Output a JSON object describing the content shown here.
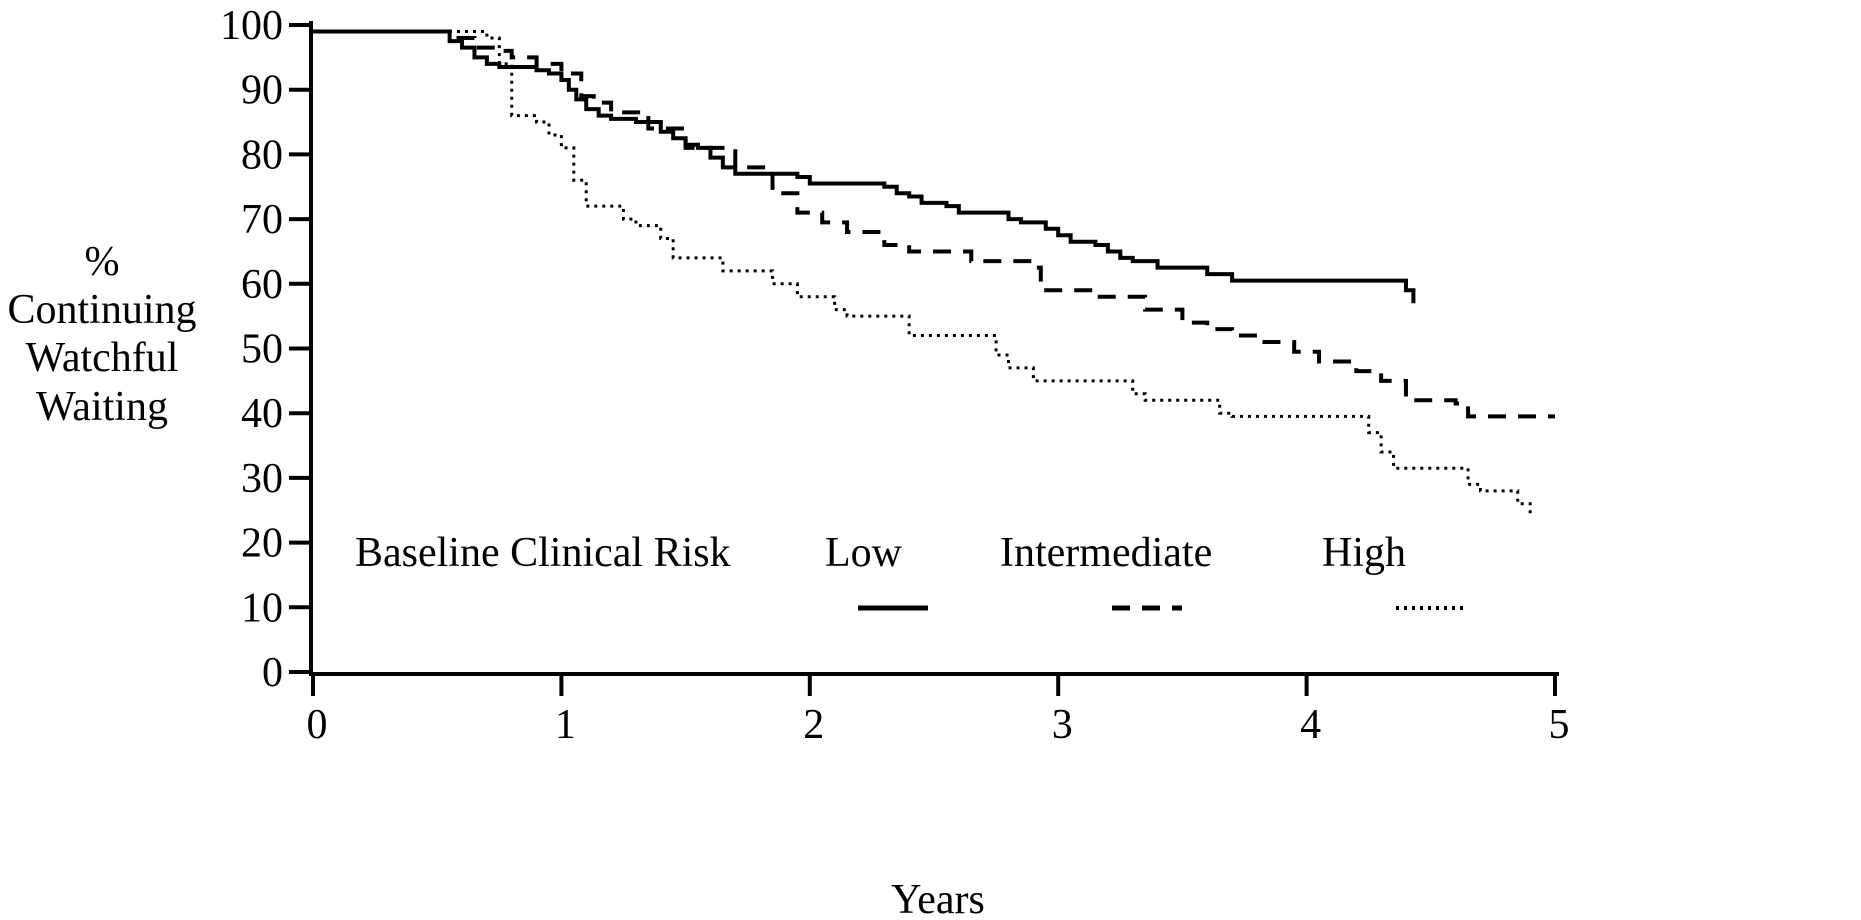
{
  "chart_data": {
    "type": "line",
    "step": true,
    "xlabel": "Years",
    "ylabel_lines": [
      "%",
      "Continuing",
      "Watchful",
      "Waiting"
    ],
    "xlim": [
      0,
      5
    ],
    "ylim": [
      0,
      100
    ],
    "x_ticks": [
      0,
      1,
      2,
      3,
      4,
      5
    ],
    "y_ticks": [
      0,
      10,
      20,
      30,
      40,
      50,
      60,
      70,
      80,
      90,
      100
    ],
    "grid": false,
    "legend": {
      "title": "Baseline Clinical Risk",
      "placement": "bottom-inside"
    },
    "series": [
      {
        "name": "Low",
        "style": "solid",
        "x": [
          0,
          0.5,
          0.55,
          0.6,
          0.65,
          0.7,
          0.75,
          0.85,
          0.9,
          0.95,
          1.0,
          1.03,
          1.06,
          1.1,
          1.15,
          1.2,
          1.3,
          1.4,
          1.45,
          1.5,
          1.55,
          1.6,
          1.65,
          1.7,
          1.75,
          1.95,
          2.0,
          2.1,
          2.3,
          2.35,
          2.4,
          2.45,
          2.55,
          2.6,
          2.75,
          2.8,
          2.85,
          2.9,
          2.95,
          3.0,
          3.05,
          3.1,
          3.15,
          3.2,
          3.25,
          3.3,
          3.4,
          3.55,
          3.6,
          3.7,
          4.36,
          4.4,
          4.43
        ],
        "y": [
          99,
          99,
          97.5,
          96.5,
          95,
          94,
          93.5,
          93.5,
          93,
          92.5,
          91.5,
          90,
          88.5,
          87,
          86,
          85.5,
          85,
          83.5,
          82.5,
          81.5,
          81,
          79.5,
          78,
          77,
          77,
          76.5,
          75.5,
          75.5,
          75,
          74,
          73.5,
          72.5,
          72,
          71,
          71,
          70,
          69.5,
          69.5,
          68.5,
          67.5,
          66.5,
          66.5,
          66,
          65,
          64,
          63.5,
          62.5,
          62.5,
          61.5,
          60.5,
          60.5,
          59,
          57
        ]
      },
      {
        "name": "Intermediate",
        "style": "dashed",
        "x": [
          0,
          0.5,
          0.55,
          0.65,
          0.75,
          0.8,
          0.9,
          1.0,
          1.08,
          1.13,
          1.2,
          1.35,
          1.5,
          1.7,
          1.85,
          1.95,
          2.05,
          2.15,
          2.3,
          2.4,
          2.65,
          2.9,
          2.93,
          3.15,
          3.35,
          3.5,
          3.6,
          3.7,
          3.8,
          3.95,
          4.05,
          4.2,
          4.3,
          4.4,
          4.6,
          4.65,
          5.0
        ],
        "y": [
          99,
          99,
          98,
          96.5,
          96,
          95,
          94,
          92.5,
          89,
          88,
          86.5,
          84,
          81,
          78,
          74,
          71,
          69.5,
          68,
          66,
          65,
          63.5,
          62.5,
          59,
          58,
          56,
          54,
          53,
          52,
          51,
          49.5,
          48,
          46.5,
          45,
          42,
          41.5,
          39.5,
          39.5
        ]
      },
      {
        "name": "High",
        "style": "dotted",
        "x": [
          0,
          0.65,
          0.7,
          0.75,
          0.8,
          0.9,
          0.95,
          1.0,
          1.05,
          1.1,
          1.15,
          1.25,
          1.3,
          1.4,
          1.45,
          1.65,
          1.85,
          1.95,
          2.1,
          2.15,
          2.25,
          2.4,
          2.7,
          2.75,
          2.8,
          2.9,
          2.95,
          3.3,
          3.35,
          3.65,
          3.7,
          4.15,
          4.25,
          4.3,
          4.35,
          4.6,
          4.65,
          4.7,
          4.85,
          4.9
        ],
        "y": [
          99,
          99,
          98,
          94,
          86,
          85,
          83,
          81,
          76,
          72,
          72,
          70,
          69,
          67,
          64,
          62,
          60,
          58,
          56,
          55,
          55,
          52,
          52,
          49,
          47,
          45,
          45,
          43,
          42,
          40,
          39.5,
          39.5,
          37,
          34,
          31.5,
          31.5,
          29,
          28,
          26,
          24
        ]
      }
    ]
  }
}
